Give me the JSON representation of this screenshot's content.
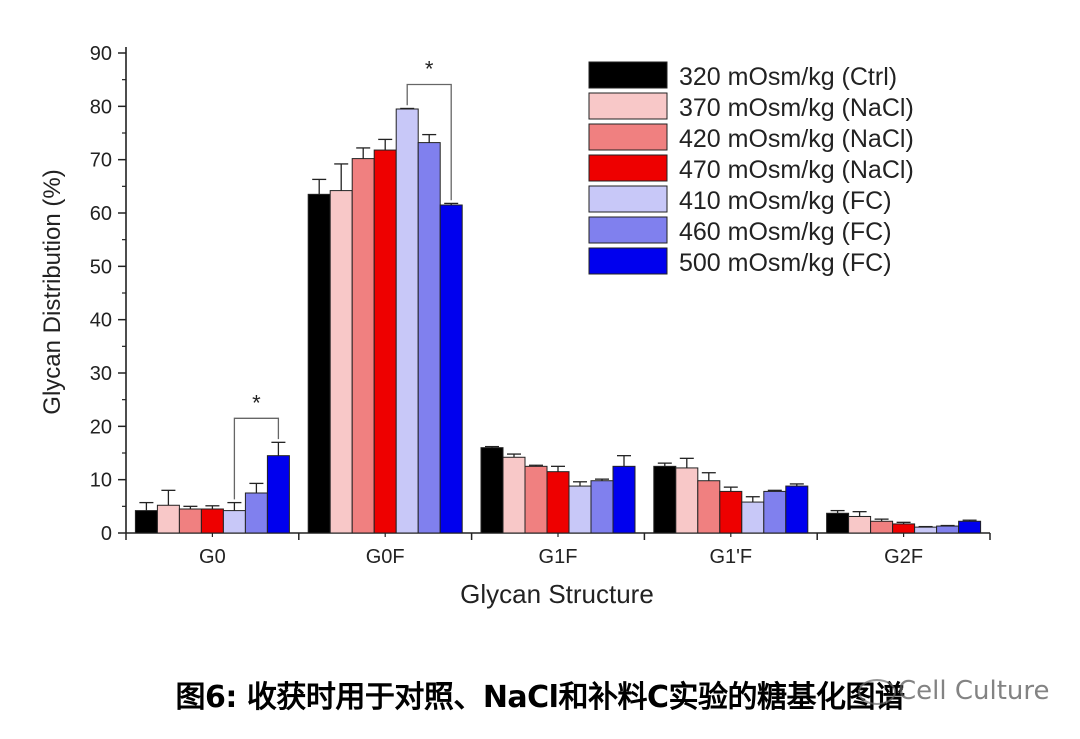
{
  "chart_data": {
    "type": "bar",
    "xlabel": "Glycan Structure",
    "ylabel": "Glycan Distribution (%)",
    "ylim": [
      0,
      90
    ],
    "yticks": [
      0,
      10,
      20,
      30,
      40,
      50,
      60,
      70,
      80,
      90
    ],
    "categories": [
      "G0",
      "G0F",
      "G1F",
      "G1'F",
      "G2F"
    ],
    "legend_position": "top-right",
    "series": [
      {
        "name": "320 mOsm/kg (Ctrl)",
        "color": "#000000",
        "values": [
          4.2,
          63.5,
          16.0,
          12.5,
          3.7
        ],
        "errors": [
          1.5,
          2.8,
          0.2,
          0.6,
          0.5
        ]
      },
      {
        "name": "370 mOsm/kg (NaCl)",
        "color": "#f8c8c8",
        "values": [
          5.2,
          64.2,
          14.2,
          12.2,
          3.1
        ],
        "errors": [
          2.8,
          5.0,
          0.6,
          1.8,
          0.9
        ]
      },
      {
        "name": "420 mOsm/kg (NaCl)",
        "color": "#f08080",
        "values": [
          4.5,
          70.2,
          12.5,
          9.8,
          2.2
        ],
        "errors": [
          0.5,
          2.0,
          0.2,
          1.5,
          0.4
        ]
      },
      {
        "name": "470 mOsm/kg (NaCl)",
        "color": "#ee0000",
        "values": [
          4.5,
          71.8,
          11.5,
          7.8,
          1.7
        ],
        "errors": [
          0.6,
          2.0,
          1.0,
          0.8,
          0.3
        ]
      },
      {
        "name": "410 mOsm/kg (FC)",
        "color": "#c8c8f8",
        "values": [
          4.2,
          79.5,
          8.8,
          5.8,
          1.1
        ],
        "errors": [
          1.5,
          0.1,
          0.8,
          1.0,
          0.1
        ]
      },
      {
        "name": "460 mOsm/kg (FC)",
        "color": "#8080ee",
        "values": [
          7.5,
          73.2,
          9.8,
          7.8,
          1.3
        ],
        "errors": [
          1.8,
          1.5,
          0.3,
          0.2,
          0.1
        ]
      },
      {
        "name": "500 mOsm/kg (FC)",
        "color": "#0000ee",
        "values": [
          14.5,
          61.5,
          12.5,
          8.8,
          2.2
        ],
        "errors": [
          2.5,
          0.3,
          2.0,
          0.4,
          0.2
        ]
      }
    ],
    "annotations": [
      {
        "text": "*",
        "category": "G0",
        "from_series": 4,
        "to_series": 6
      },
      {
        "text": "*",
        "category": "G0F",
        "from_series": 4,
        "to_series": 6
      }
    ]
  },
  "caption": "图6: 收获时用于对照、NaCl和补料C实验的糖基化图谱",
  "watermark": "Cell Culture"
}
